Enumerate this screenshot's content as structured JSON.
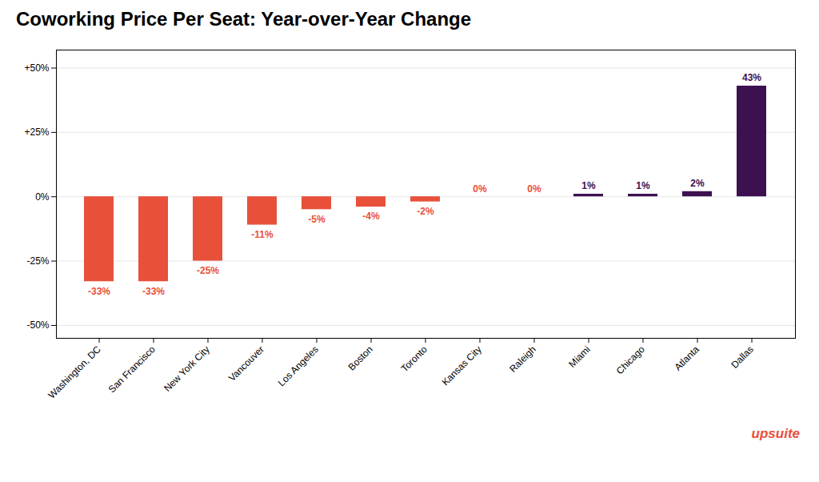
{
  "chart_data": {
    "type": "bar",
    "title": "Coworking Price Per Seat: Year-over-Year Change",
    "categories": [
      "Washington, DC",
      "San Francisco",
      "New York City",
      "Vancouver",
      "Los Angeles",
      "Boston",
      "Toronto",
      "Kansas City",
      "Raleigh",
      "Miami",
      "Chicago",
      "Atlanta",
      "Dallas"
    ],
    "values": [
      -33,
      -33,
      -25,
      -11,
      -5,
      -4,
      -2,
      0,
      0,
      1,
      1,
      2,
      43
    ],
    "value_labels": [
      "-33%",
      "-33%",
      "-25%",
      "-11%",
      "-5%",
      "-4%",
      "-2%",
      "0%",
      "0%",
      "1%",
      "1%",
      "2%",
      "43%"
    ],
    "colors": [
      "#E8503A",
      "#E8503A",
      "#E8503A",
      "#E8503A",
      "#E8503A",
      "#E8503A",
      "#E8503A",
      "#E8503A",
      "#E8503A",
      "#3D1050",
      "#3D1050",
      "#3D1050",
      "#3D1050"
    ],
    "ylim": [
      -55,
      57
    ],
    "yticks": [
      {
        "value": -50,
        "label": "-50%"
      },
      {
        "value": -25,
        "label": "-25%"
      },
      {
        "value": 0,
        "label": "0%"
      },
      {
        "value": 25,
        "label": "+25%"
      },
      {
        "value": 50,
        "label": "+50%"
      }
    ],
    "grid": true,
    "data_labels": true,
    "annotations": [
      {
        "text": "upsuite",
        "color": "#E8503A"
      }
    ]
  }
}
